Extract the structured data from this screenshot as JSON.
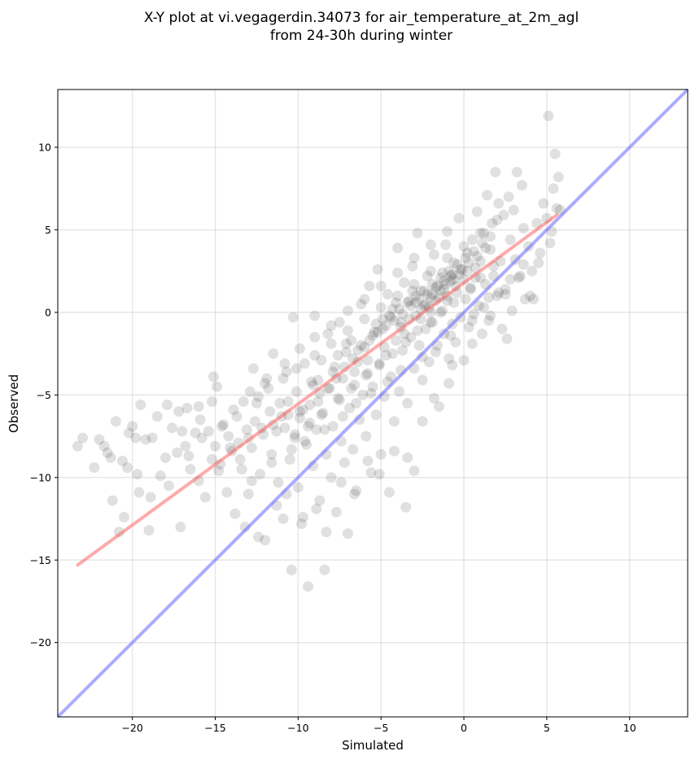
{
  "chart_data": {
    "type": "scatter",
    "title": "X-Y plot at vi.vegagerdin.34073 for air_temperature_at_2m_agl",
    "subtitle": "from 24-30h during winter",
    "xlabel": "Simulated",
    "ylabel": "Observed",
    "xlim": [
      -24.5,
      13.5
    ],
    "ylim": [
      -24.5,
      13.5
    ],
    "xticks": [
      -20,
      -15,
      -10,
      -5,
      0,
      5,
      10
    ],
    "yticks": [
      -20,
      -15,
      -10,
      -5,
      0,
      5,
      10
    ],
    "xtick_labels": [
      "−20",
      "−15",
      "−10",
      "−5",
      "0",
      "5",
      "10"
    ],
    "ytick_labels": [
      "−20",
      "−15",
      "−10",
      "−5",
      "0",
      "5",
      "10"
    ],
    "grid": true,
    "point_color": "#000000",
    "point_alpha": 0.12,
    "points": [
      [
        -23.3,
        -8.1
      ],
      [
        -23.0,
        -7.6
      ],
      [
        -22.3,
        -9.4
      ],
      [
        -21.7,
        -8.1
      ],
      [
        -21.5,
        -8.5
      ],
      [
        -21.3,
        -8.8
      ],
      [
        -21.0,
        -6.6
      ],
      [
        -21.2,
        -11.4
      ],
      [
        -20.6,
        -9.0
      ],
      [
        -20.8,
        -13.3
      ],
      [
        -20.2,
        -7.3
      ],
      [
        -20.3,
        -9.4
      ],
      [
        -19.8,
        -7.6
      ],
      [
        -19.6,
        -10.9
      ],
      [
        -19.5,
        -5.6
      ],
      [
        -19.2,
        -7.7
      ],
      [
        -19.0,
        -13.2
      ],
      [
        -18.8,
        -7.6
      ],
      [
        -18.3,
        -9.9
      ],
      [
        -17.9,
        -5.6
      ],
      [
        -17.6,
        -7.0
      ],
      [
        -17.3,
        -8.5
      ],
      [
        -17.1,
        -13.0
      ],
      [
        -17.0,
        -7.2
      ],
      [
        -16.7,
        -5.8
      ],
      [
        -16.6,
        -8.7
      ],
      [
        -16.2,
        -7.3
      ],
      [
        -16.0,
        -10.2
      ],
      [
        -15.9,
        -6.5
      ],
      [
        -15.6,
        -11.2
      ],
      [
        -15.4,
        -7.2
      ],
      [
        -15.2,
        -5.4
      ],
      [
        -15.1,
        -3.9
      ],
      [
        -15.0,
        -8.1
      ],
      [
        -14.9,
        -4.5
      ],
      [
        -14.7,
        -9.2
      ],
      [
        -14.5,
        -6.8
      ],
      [
        -14.3,
        -10.9
      ],
      [
        -14.2,
        -7.5
      ],
      [
        -14.0,
        -8.4
      ],
      [
        -13.8,
        -12.2
      ],
      [
        -13.7,
        -6.3
      ],
      [
        -13.6,
        -7.9
      ],
      [
        -13.4,
        -9.5
      ],
      [
        -13.3,
        -5.4
      ],
      [
        -13.1,
        -7.1
      ],
      [
        -13.0,
        -11.0
      ],
      [
        -12.8,
        -8.2
      ],
      [
        -12.7,
        -3.4
      ],
      [
        -12.6,
        -6.6
      ],
      [
        -12.4,
        -5.1
      ],
      [
        -12.3,
        -9.8
      ],
      [
        -12.1,
        -7.4
      ],
      [
        -12.0,
        -13.8
      ],
      [
        -11.9,
        -4.0
      ],
      [
        -11.7,
        -6.0
      ],
      [
        -11.6,
        -8.6
      ],
      [
        -11.5,
        -2.5
      ],
      [
        -11.3,
        -7.2
      ],
      [
        -11.2,
        -10.3
      ],
      [
        -11.1,
        -5.5
      ],
      [
        -10.9,
        -12.5
      ],
      [
        -10.8,
        -7.0
      ],
      [
        -10.7,
        -3.6
      ],
      [
        -10.6,
        -6.2
      ],
      [
        -10.5,
        -8.9
      ],
      [
        -10.4,
        -15.6
      ],
      [
        -10.3,
        -0.3
      ],
      [
        -10.2,
        -7.6
      ],
      [
        -10.1,
        -4.8
      ],
      [
        -10.0,
        -10.6
      ],
      [
        -9.9,
        -6.4
      ],
      [
        -9.8,
        -12.8
      ],
      [
        -9.7,
        -5.9
      ],
      [
        -9.6,
        -3.1
      ],
      [
        -9.5,
        -8.0
      ],
      [
        -9.4,
        -16.6
      ],
      [
        -9.3,
        -6.7
      ],
      [
        -9.2,
        -4.2
      ],
      [
        -9.1,
        -9.3
      ],
      [
        -9.0,
        -0.2
      ],
      [
        -8.9,
        -7.1
      ],
      [
        -8.8,
        -5.4
      ],
      [
        -8.7,
        -11.4
      ],
      [
        -8.6,
        -2.9
      ],
      [
        -8.5,
        -6.1
      ],
      [
        -8.4,
        -15.6
      ],
      [
        -8.3,
        -8.6
      ],
      [
        -8.2,
        -1.3
      ],
      [
        -8.1,
        -4.6
      ],
      [
        -8.0,
        -10.0
      ],
      [
        -7.9,
        -6.9
      ],
      [
        -7.8,
        -3.3
      ],
      [
        -7.7,
        -12.1
      ],
      [
        -7.6,
        -5.2
      ],
      [
        -7.5,
        -0.6
      ],
      [
        -7.4,
        -7.8
      ],
      [
        -7.3,
        -4.0
      ],
      [
        -7.2,
        -9.1
      ],
      [
        -7.1,
        -2.4
      ],
      [
        -7.0,
        -13.4
      ],
      [
        -6.9,
        -5.8
      ],
      [
        -6.8,
        -1.7
      ],
      [
        -6.7,
        -8.3
      ],
      [
        -6.6,
        -4.4
      ],
      [
        -6.5,
        -10.8
      ],
      [
        -6.4,
        -3.0
      ],
      [
        -6.3,
        -6.5
      ],
      [
        -6.2,
        0.5
      ],
      [
        -6.1,
        -5.0
      ],
      [
        -6.0,
        -2.1
      ],
      [
        -5.9,
        -7.5
      ],
      [
        -5.8,
        -3.7
      ],
      [
        -5.7,
        1.6
      ],
      [
        -5.6,
        -9.7
      ],
      [
        -5.5,
        -4.5
      ],
      [
        -5.4,
        -1.2
      ],
      [
        -5.3,
        -6.2
      ],
      [
        -5.2,
        2.6
      ],
      [
        -5.1,
        -3.1
      ],
      [
        -5.0,
        -8.6
      ],
      [
        -4.9,
        -0.4
      ],
      [
        -4.8,
        -5.1
      ],
      [
        -4.7,
        -2.6
      ],
      [
        -4.6,
        1.1
      ],
      [
        -4.5,
        -10.9
      ],
      [
        -4.4,
        -3.9
      ],
      [
        -4.3,
        0.2
      ],
      [
        -4.2,
        -6.6
      ],
      [
        -4.1,
        -1.7
      ],
      [
        -4.0,
        3.9
      ],
      [
        -3.9,
        -4.8
      ],
      [
        -3.8,
        -0.9
      ],
      [
        -3.7,
        -2.3
      ],
      [
        -3.6,
        1.8
      ],
      [
        -3.5,
        -11.8
      ],
      [
        -3.4,
        -5.5
      ],
      [
        -3.3,
        0.7
      ],
      [
        -3.2,
        -1.5
      ],
      [
        -3.1,
        2.8
      ],
      [
        -3.0,
        -3.4
      ],
      [
        -2.9,
        -0.2
      ],
      [
        -2.8,
        4.8
      ],
      [
        -2.7,
        -2.0
      ],
      [
        -2.6,
        1.3
      ],
      [
        -2.5,
        -4.1
      ],
      [
        -2.4,
        0.4
      ],
      [
        -2.3,
        -1.0
      ],
      [
        -2.2,
        2.2
      ],
      [
        -2.1,
        -3.0
      ],
      [
        -2.0,
        0.9
      ],
      [
        -1.9,
        -0.6
      ],
      [
        -1.8,
        3.5
      ],
      [
        -1.7,
        -2.4
      ],
      [
        -1.6,
        1.6
      ],
      [
        -1.5,
        -5.7
      ],
      [
        -1.4,
        0.0
      ],
      [
        -1.3,
        2.4
      ],
      [
        -1.2,
        -1.3
      ],
      [
        -1.1,
        4.1
      ],
      [
        -1.0,
        0.7
      ],
      [
        -0.9,
        -2.8
      ],
      [
        -0.8,
        1.9
      ],
      [
        -0.7,
        -0.7
      ],
      [
        -0.6,
        3.0
      ],
      [
        -0.5,
        -1.8
      ],
      [
        -0.4,
        1.2
      ],
      [
        -0.3,
        5.7
      ],
      [
        -0.2,
        -0.3
      ],
      [
        -0.1,
        2.6
      ],
      [
        0.0,
        -2.9
      ],
      [
        0.1,
        0.8
      ],
      [
        0.2,
        3.6
      ],
      [
        0.3,
        -0.9
      ],
      [
        0.4,
        1.5
      ],
      [
        0.5,
        4.4
      ],
      [
        0.6,
        -0.1
      ],
      [
        0.7,
        2.1
      ],
      [
        0.8,
        6.1
      ],
      [
        0.9,
        0.4
      ],
      [
        1.0,
        3.1
      ],
      [
        1.1,
        -1.3
      ],
      [
        1.2,
        4.8
      ],
      [
        1.3,
        1.7
      ],
      [
        1.4,
        7.1
      ],
      [
        1.5,
        0.9
      ],
      [
        1.6,
        3.8
      ],
      [
        1.7,
        5.4
      ],
      [
        1.8,
        2.2
      ],
      [
        1.9,
        8.5
      ],
      [
        2.0,
        1.0
      ],
      [
        2.1,
        6.6
      ],
      [
        2.2,
        3.1
      ],
      [
        2.3,
        -1.0
      ],
      [
        2.4,
        5.9
      ],
      [
        2.5,
        1.4
      ],
      [
        2.6,
        -1.6
      ],
      [
        2.7,
        7.0
      ],
      [
        2.8,
        4.4
      ],
      [
        2.9,
        0.1
      ],
      [
        3.0,
        6.2
      ],
      [
        3.1,
        3.2
      ],
      [
        3.2,
        8.5
      ],
      [
        3.4,
        2.2
      ],
      [
        3.6,
        5.1
      ],
      [
        3.7,
        0.8
      ],
      [
        3.9,
        4.0
      ],
      [
        4.1,
        2.5
      ],
      [
        4.2,
        0.8
      ],
      [
        4.4,
        5.4
      ],
      [
        4.6,
        3.6
      ],
      [
        5.0,
        5.7
      ],
      [
        5.1,
        11.9
      ],
      [
        5.2,
        4.2
      ],
      [
        5.4,
        7.5
      ],
      [
        5.5,
        9.6
      ],
      [
        5.6,
        6.3
      ],
      [
        5.7,
        8.2
      ],
      [
        4.8,
        6.6
      ],
      [
        3.5,
        7.7
      ],
      [
        1.5,
        -0.5
      ],
      [
        -0.9,
        -4.3
      ],
      [
        -3.0,
        -9.6
      ],
      [
        -9.1,
        -4.4
      ],
      [
        -10.6,
        -5.4
      ],
      [
        -9.9,
        -6.0
      ],
      [
        -9.3,
        -5.6
      ],
      [
        -8.7,
        -4.9
      ],
      [
        -8.2,
        -4.6
      ],
      [
        -7.7,
        -4.0
      ],
      [
        -7.2,
        -3.3
      ],
      [
        -6.7,
        -2.8
      ],
      [
        -6.2,
        -2.0
      ],
      [
        -5.7,
        -1.7
      ],
      [
        -5.2,
        -1.2
      ],
      [
        -4.7,
        -0.8
      ],
      [
        -4.2,
        -0.5
      ],
      [
        -3.7,
        -0.1
      ],
      [
        -3.2,
        0.4
      ],
      [
        -2.7,
        0.8
      ],
      [
        -2.2,
        1.1
      ],
      [
        -1.7,
        1.5
      ],
      [
        -1.2,
        1.9
      ],
      [
        -0.7,
        2.3
      ],
      [
        -0.2,
        2.6
      ],
      [
        0.3,
        3.0
      ],
      [
        0.8,
        3.4
      ],
      [
        1.3,
        3.9
      ],
      [
        -11.5,
        -6.8
      ],
      [
        -11.0,
        -6.3
      ],
      [
        -12.2,
        -7.0
      ],
      [
        -13.0,
        -7.6
      ],
      [
        -14.1,
        -8.2
      ],
      [
        -15.2,
        -8.9
      ],
      [
        -8.8,
        -4.1
      ],
      [
        -7.9,
        -3.6
      ],
      [
        -6.4,
        -2.3
      ],
      [
        -5.5,
        -1.4
      ],
      [
        -4.9,
        -1.0
      ],
      [
        -4.4,
        -0.3
      ],
      [
        -3.9,
        0.2
      ],
      [
        -3.4,
        0.6
      ],
      [
        -2.9,
        1.0
      ],
      [
        -2.4,
        1.3
      ],
      [
        -1.9,
        1.7
      ],
      [
        -1.4,
        2.1
      ],
      [
        -0.9,
        2.5
      ],
      [
        -0.4,
        2.9
      ],
      [
        0.1,
        3.3
      ],
      [
        0.6,
        3.7
      ],
      [
        1.1,
        4.2
      ],
      [
        1.6,
        4.6
      ],
      [
        -10.2,
        -7.4
      ],
      [
        -9.4,
        -6.9
      ],
      [
        -8.6,
        -6.2
      ],
      [
        -7.5,
        -5.3
      ],
      [
        -6.8,
        -4.6
      ],
      [
        -5.9,
        -3.8
      ],
      [
        -5.1,
        -3.2
      ],
      [
        -4.3,
        -2.5
      ],
      [
        -3.5,
        -1.8
      ],
      [
        -2.8,
        -1.1
      ],
      [
        -2.0,
        -0.6
      ],
      [
        -1.3,
        0.1
      ],
      [
        -0.6,
        0.6
      ],
      [
        0.4,
        1.4
      ],
      [
        1.0,
        2.1
      ],
      [
        1.8,
        2.8
      ],
      [
        -12.5,
        -5.5
      ],
      [
        -11.8,
        -4.6
      ],
      [
        -10.9,
        -4.0
      ],
      [
        -10.1,
        -3.4
      ],
      [
        -9.0,
        -2.6
      ],
      [
        -8.0,
        -1.9
      ],
      [
        -7.0,
        -1.1
      ],
      [
        -6.0,
        -0.4
      ],
      [
        -5.0,
        0.3
      ],
      [
        -4.0,
        1.0
      ],
      [
        -3.0,
        1.7
      ],
      [
        -2.0,
        2.5
      ],
      [
        -1.0,
        3.3
      ],
      [
        0.0,
        4.0
      ],
      [
        1.0,
        4.8
      ],
      [
        2.0,
        5.6
      ],
      [
        -16.5,
        -9.5
      ],
      [
        -17.8,
        -10.5
      ],
      [
        -18.9,
        -11.2
      ],
      [
        -20.5,
        -12.4
      ],
      [
        -14.8,
        -9.6
      ],
      [
        -13.5,
        -8.9
      ],
      [
        -12.8,
        -10.2
      ],
      [
        -11.6,
        -9.1
      ],
      [
        -10.4,
        -8.3
      ],
      [
        -9.6,
        -7.8
      ],
      [
        -8.4,
        -7.1
      ],
      [
        -7.3,
        -6.3
      ],
      [
        -6.5,
        -5.5
      ],
      [
        -5.6,
        -4.9
      ],
      [
        -4.6,
        -4.2
      ],
      [
        -3.8,
        -3.5
      ],
      [
        -2.5,
        -2.7
      ],
      [
        -1.6,
        -2.0
      ],
      [
        -0.8,
        -1.4
      ],
      [
        0.5,
        -0.5
      ],
      [
        1.2,
        0.3
      ],
      [
        2.1,
        1.2
      ],
      [
        2.8,
        2.0
      ],
      [
        3.6,
        2.9
      ],
      [
        -7.6,
        -2.6
      ],
      [
        -7.1,
        -1.9
      ],
      [
        -6.6,
        -3.6
      ],
      [
        -5.8,
        -2.9
      ],
      [
        -5.3,
        -0.7
      ],
      [
        -4.8,
        -2.1
      ],
      [
        -4.1,
        0.6
      ],
      [
        -3.6,
        -1.3
      ],
      [
        -3.1,
        1.3
      ],
      [
        -2.6,
        -0.4
      ],
      [
        -2.1,
        0.3
      ],
      [
        -1.5,
        0.9
      ],
      [
        -1.0,
        1.0
      ],
      [
        -0.5,
        1.6
      ],
      [
        0.0,
        2.0
      ],
      [
        0.7,
        2.7
      ],
      [
        -2.3,
        0.5
      ],
      [
        -2.0,
        0.0
      ],
      [
        -1.7,
        0.7
      ],
      [
        -1.4,
        1.3
      ],
      [
        -1.1,
        1.7
      ],
      [
        -0.8,
        2.2
      ],
      [
        -0.6,
        2.0
      ],
      [
        -1.9,
        1.1
      ],
      [
        -2.6,
        0.2
      ],
      [
        -3.3,
        -0.4
      ],
      [
        -3.8,
        -0.6
      ],
      [
        -4.5,
        -0.2
      ],
      [
        -2.9,
        0.6
      ],
      [
        -1.2,
        1.4
      ],
      [
        -0.3,
        2.3
      ],
      [
        0.2,
        2.5
      ],
      [
        -22.0,
        -7.7
      ],
      [
        -20.0,
        -6.9
      ],
      [
        -18.5,
        -6.3
      ],
      [
        -17.2,
        -6.0
      ],
      [
        -16.0,
        -5.7
      ],
      [
        -19.7,
        -9.8
      ],
      [
        -18.0,
        -8.8
      ],
      [
        -16.8,
        -8.1
      ],
      [
        -15.8,
        -7.6
      ],
      [
        -14.6,
        -6.9
      ],
      [
        -13.9,
        -5.9
      ],
      [
        -12.9,
        -4.8
      ],
      [
        -12.0,
        -4.3
      ],
      [
        -10.8,
        -3.1
      ],
      [
        -9.9,
        -2.2
      ],
      [
        -9.0,
        -1.5
      ],
      [
        -8.0,
        -0.8
      ],
      [
        -7.0,
        0.1
      ],
      [
        -6.0,
        0.8
      ],
      [
        -5.0,
        1.6
      ],
      [
        -4.0,
        2.4
      ],
      [
        -3.0,
        3.3
      ],
      [
        -2.0,
        4.1
      ],
      [
        -1.0,
        4.9
      ],
      [
        -13.2,
        -13.0
      ],
      [
        -12.4,
        -13.6
      ],
      [
        -11.3,
        -11.7
      ],
      [
        -10.7,
        -11.0
      ],
      [
        -9.7,
        -12.4
      ],
      [
        -8.9,
        -11.9
      ],
      [
        -8.3,
        -13.3
      ],
      [
        -7.4,
        -10.3
      ],
      [
        -6.6,
        -11.0
      ],
      [
        -5.8,
        -9.0
      ],
      [
        -5.1,
        -9.8
      ],
      [
        -4.2,
        -8.4
      ],
      [
        -3.4,
        -8.8
      ],
      [
        -2.5,
        -6.6
      ],
      [
        -1.8,
        -5.2
      ],
      [
        -0.7,
        -3.2
      ],
      [
        0.5,
        -1.9
      ],
      [
        1.6,
        -0.2
      ],
      [
        2.5,
        1.1
      ],
      [
        3.3,
        2.1
      ],
      [
        4.0,
        1.0
      ],
      [
        4.5,
        3.0
      ],
      [
        5.3,
        4.9
      ],
      [
        5.8,
        6.2
      ]
    ],
    "fit_line": {
      "color": "#ff5555",
      "x": [
        -23.3,
        5.6
      ],
      "y": [
        -15.3,
        5.9
      ]
    },
    "identity_line": {
      "color": "#6666ff",
      "x": [
        -24.5,
        13.5
      ],
      "y": [
        -24.5,
        13.5
      ]
    }
  }
}
